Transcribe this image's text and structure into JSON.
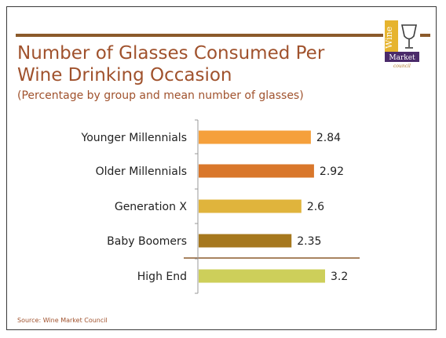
{
  "slide": {
    "title": "Number of Glasses Consumed Per Wine Drinking Occasion",
    "subtitle": "(Percentage by group and mean number of glasses)",
    "source": "Source: Wine Market Council",
    "logo": {
      "line1": "Wine",
      "line2": "Market",
      "line3": "council"
    }
  },
  "chart_data": {
    "type": "bar",
    "orientation": "horizontal",
    "categories": [
      "Younger Millennials",
      "Older Millennials",
      "Generation X",
      "Baby Boomers",
      "High End"
    ],
    "values": [
      2.84,
      2.92,
      2.6,
      2.35,
      3.2
    ],
    "value_labels": [
      "2.84",
      "2.92",
      "2.6",
      "2.35",
      "3.2"
    ],
    "colors": [
      "#f5a03c",
      "#d9772b",
      "#e0b43c",
      "#a6781e",
      "#cdcf5a"
    ],
    "xlim": [
      0,
      3.2
    ],
    "title": "",
    "xlabel": "",
    "ylabel": "",
    "grid": false,
    "legend": "none"
  }
}
